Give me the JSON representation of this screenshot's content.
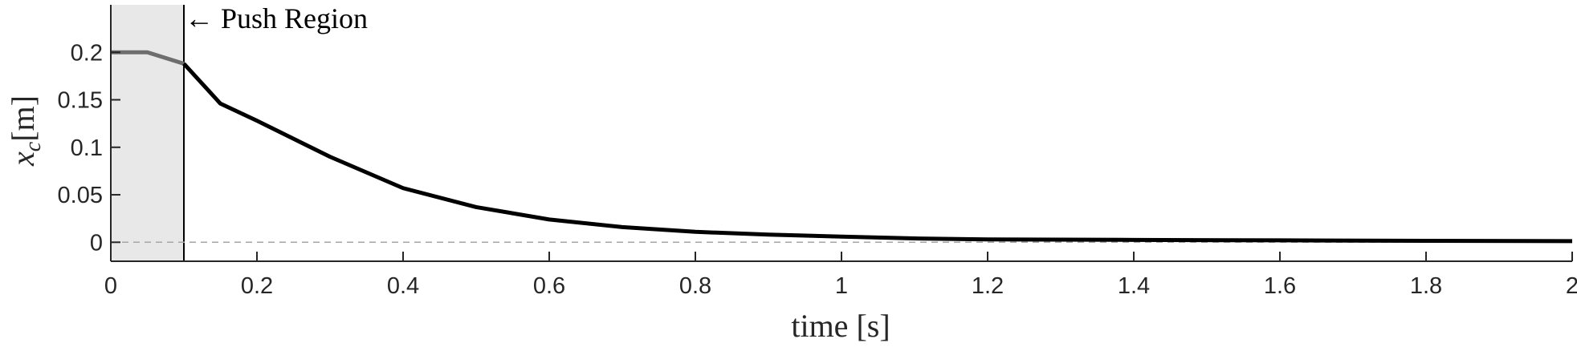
{
  "chart_data": {
    "type": "line",
    "xlabel": "time [s]",
    "ylabel_base": "x",
    "ylabel_sub": "c",
    "ylabel_unit": "[m]",
    "xlim": [
      0,
      2
    ],
    "ylim": [
      -0.02,
      0.25
    ],
    "xticks": [
      0,
      0.2,
      0.4,
      0.6,
      0.8,
      1,
      1.2,
      1.4,
      1.6,
      1.8,
      2
    ],
    "xtick_labels": [
      "0",
      "0.2",
      "0.4",
      "0.6",
      "0.8",
      "1",
      "1.2",
      "1.4",
      "1.6",
      "1.8",
      "2"
    ],
    "yticks": [
      0,
      0.05,
      0.1,
      0.15,
      0.2
    ],
    "ytick_labels": [
      "0",
      "0.05",
      "0.1",
      "0.15",
      "0.2"
    ],
    "grid": false,
    "push_region": {
      "x_start": 0,
      "x_end": 0.1,
      "label": "← Push Region",
      "fill": "#e8e8e8"
    },
    "reference_line": {
      "y": 0,
      "style": "dashed",
      "color": "#a6a6a6"
    },
    "series": [
      {
        "segment": "push",
        "color": "#6e6e6e",
        "x": [
          0,
          0.05,
          0.1
        ],
        "y": [
          0.2,
          0.2,
          0.188
        ]
      },
      {
        "segment": "recovery",
        "color": "#000000",
        "x": [
          0.1,
          0.15,
          0.2,
          0.25,
          0.3,
          0.4,
          0.5,
          0.6,
          0.7,
          0.8,
          0.9,
          1.0,
          1.1,
          1.2,
          1.4,
          1.6,
          1.8,
          2.0
        ],
        "y": [
          0.188,
          0.146,
          0.128,
          0.109,
          0.09,
          0.057,
          0.037,
          0.024,
          0.016,
          0.011,
          0.008,
          0.006,
          0.004,
          0.003,
          0.0025,
          0.002,
          0.0015,
          0.0012
        ]
      }
    ]
  }
}
